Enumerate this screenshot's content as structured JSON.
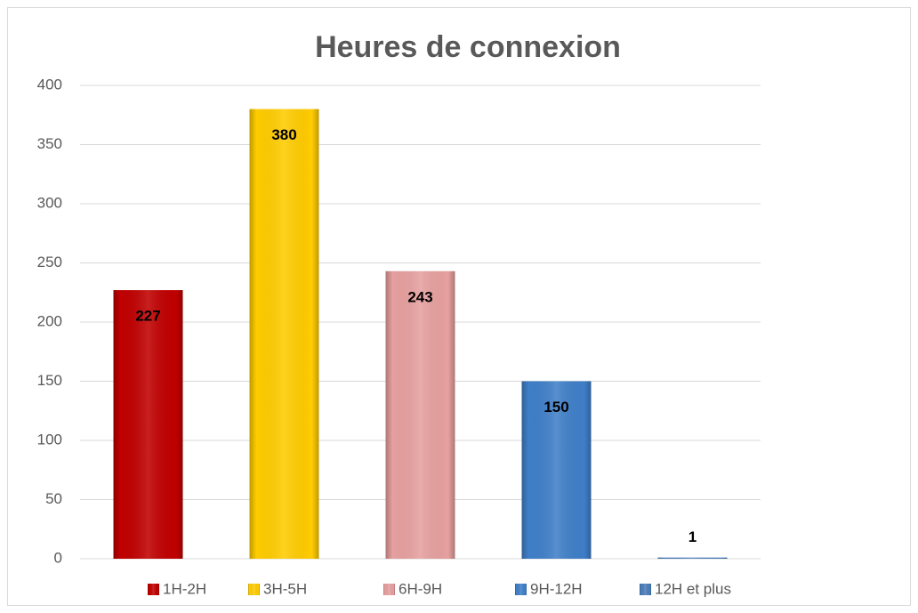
{
  "chart_data": {
    "type": "bar",
    "title": "Heures de connexion",
    "categories": [
      null
    ],
    "series": [
      {
        "name": "1H-2H",
        "color": "#c00000",
        "values": [
          227
        ]
      },
      {
        "name": "3H-5H",
        "color": "#ffcc00",
        "values": [
          380
        ]
      },
      {
        "name": "6H-9H",
        "color": "#e6a09f",
        "values": [
          243
        ]
      },
      {
        "name": "9H-12H",
        "color": "#3f7fc8",
        "values": [
          150
        ]
      },
      {
        "name": "12H et plus",
        "color": "#4a7ebb",
        "values": [
          1
        ]
      }
    ],
    "ylim": [
      0,
      400
    ],
    "yticks": [
      0,
      50,
      100,
      150,
      200,
      250,
      300,
      350,
      400
    ],
    "grid": true,
    "legend": "bottom"
  }
}
